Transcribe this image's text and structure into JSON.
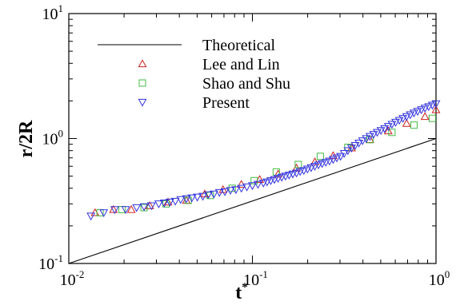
{
  "chart_data": {
    "type": "scatter",
    "xscale": "log",
    "yscale": "log",
    "xlim": [
      0.01,
      1
    ],
    "ylim": [
      0.1,
      10
    ],
    "xlabel": "t",
    "xlabel_superscript": "*",
    "ylabel": "r/2R",
    "x_ticks": [
      {
        "base": "10",
        "exp": "-2",
        "value": 0.01
      },
      {
        "base": "10",
        "exp": "-1",
        "value": 0.1
      },
      {
        "base": "10",
        "exp": "0",
        "value": 1
      }
    ],
    "y_ticks": [
      {
        "base": "10",
        "exp": "-1",
        "value": 0.1
      },
      {
        "base": "10",
        "exp": "0",
        "value": 1
      },
      {
        "base": "10",
        "exp": "1",
        "value": 10
      }
    ],
    "legend_position": "top-left",
    "series": [
      {
        "name": "Theoretical",
        "kind": "line",
        "color": "#000000",
        "x": [
          0.01,
          1
        ],
        "y": [
          0.1,
          1
        ]
      },
      {
        "name": "Lee and Lin",
        "kind": "marker",
        "marker": "triangle-up",
        "color": "#cc2222",
        "x": [
          0.0139,
          0.0175,
          0.0219,
          0.0276,
          0.0347,
          0.0437,
          0.055,
          0.0692,
          0.0871,
          0.1096,
          0.138,
          0.1738,
          0.2188,
          0.2754,
          0.3467,
          0.4365,
          0.5495,
          0.6918,
          0.871,
          1.0
        ],
        "y": [
          0.255,
          0.27,
          0.27,
          0.29,
          0.31,
          0.32,
          0.36,
          0.39,
          0.43,
          0.47,
          0.52,
          0.58,
          0.65,
          0.73,
          0.84,
          0.98,
          1.15,
          1.32,
          1.5,
          1.7
        ]
      },
      {
        "name": "Shao and Shu",
        "kind": "marker",
        "marker": "square",
        "color": "#44bb44",
        "x": [
          0.0148,
          0.0195,
          0.0257,
          0.0339,
          0.0447,
          0.0589,
          0.0776,
          0.1023,
          0.1349,
          0.1778,
          0.2344,
          0.3311,
          0.4365,
          0.5754,
          0.7586,
          0.955
        ],
        "y": [
          0.255,
          0.27,
          0.28,
          0.3,
          0.32,
          0.35,
          0.4,
          0.46,
          0.54,
          0.62,
          0.72,
          0.85,
          0.98,
          1.12,
          1.28,
          1.45
        ]
      },
      {
        "name": "Present",
        "kind": "marker",
        "marker": "triangle-down",
        "color": "#3333dd",
        "x": [
          0.0132,
          0.0155,
          0.0178,
          0.0204,
          0.0234,
          0.0257,
          0.0282,
          0.0309,
          0.0331,
          0.0355,
          0.038,
          0.0407,
          0.0437,
          0.0468,
          0.0501,
          0.0537,
          0.0575,
          0.0617,
          0.0661,
          0.0708,
          0.0759,
          0.0813,
          0.0871,
          0.0933,
          0.1,
          0.1072,
          0.1148,
          0.1202,
          0.1259,
          0.1318,
          0.138,
          0.1445,
          0.1514,
          0.1585,
          0.166,
          0.1738,
          0.182,
          0.1905,
          0.1995,
          0.2089,
          0.2188,
          0.2291,
          0.2399,
          0.2512,
          0.263,
          0.2754,
          0.2884,
          0.302,
          0.3162,
          0.3311,
          0.3467,
          0.3631,
          0.3802,
          0.3981,
          0.4169,
          0.4365,
          0.4571,
          0.4786,
          0.5012,
          0.5248,
          0.5495,
          0.5754,
          0.6026,
          0.631,
          0.6607,
          0.6918,
          0.7244,
          0.7586,
          0.7943,
          0.8318,
          0.871,
          0.912,
          0.955,
          1.0
        ],
        "y": [
          0.24,
          0.255,
          0.27,
          0.27,
          0.28,
          0.285,
          0.29,
          0.3,
          0.305,
          0.31,
          0.315,
          0.325,
          0.33,
          0.335,
          0.34,
          0.345,
          0.355,
          0.36,
          0.37,
          0.375,
          0.385,
          0.39,
          0.4,
          0.41,
          0.42,
          0.43,
          0.44,
          0.45,
          0.46,
          0.47,
          0.48,
          0.49,
          0.5,
          0.51,
          0.52,
          0.53,
          0.545,
          0.555,
          0.57,
          0.585,
          0.6,
          0.615,
          0.63,
          0.645,
          0.66,
          0.68,
          0.7,
          0.72,
          0.76,
          0.8,
          0.84,
          0.88,
          0.92,
          0.96,
          1.0,
          1.04,
          1.08,
          1.12,
          1.16,
          1.2,
          1.25,
          1.3,
          1.35,
          1.4,
          1.45,
          1.5,
          1.55,
          1.6,
          1.65,
          1.7,
          1.75,
          1.8,
          1.85,
          1.9
        ]
      }
    ]
  }
}
